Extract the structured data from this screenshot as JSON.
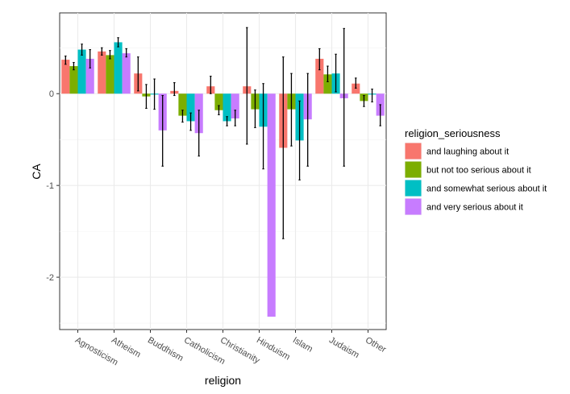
{
  "chart_data": {
    "type": "bar",
    "xlabel": "religion",
    "ylabel": "CA",
    "ylim": [
      -2.57,
      0.88
    ],
    "yticks": [
      -2,
      -1,
      0
    ],
    "y_tick_labels": [
      "-2",
      "-1",
      "0"
    ],
    "grid": true,
    "legend_position": "right",
    "legend_title": "religion_seriousness",
    "categories": [
      "Agnosticism",
      "Atheism",
      "Buddhism",
      "Catholicism",
      "Christianity",
      "Hinduism",
      "Islam",
      "Judaism",
      "Other"
    ],
    "series": [
      {
        "name": "and laughing about it",
        "color": "#F8766D",
        "values": [
          0.37,
          0.46,
          0.22,
          0.03,
          0.08,
          0.08,
          -0.59,
          0.38,
          0.11
        ],
        "error_low": [
          0.32,
          0.42,
          0.03,
          -0.02,
          0.0,
          -0.55,
          -1.58,
          0.26,
          0.06
        ],
        "error_high": [
          0.41,
          0.5,
          0.4,
          0.12,
          0.19,
          0.72,
          0.4,
          0.49,
          0.17
        ]
      },
      {
        "name": "but not too serious about it",
        "color": "#7CAE00",
        "values": [
          0.3,
          0.42,
          -0.03,
          -0.24,
          -0.18,
          -0.17,
          -0.17,
          0.21,
          -0.08
        ],
        "error_low": [
          0.26,
          0.38,
          -0.16,
          -0.31,
          -0.23,
          -0.37,
          -0.57,
          0.13,
          -0.14
        ],
        "error_high": [
          0.34,
          0.47,
          0.1,
          -0.18,
          -0.13,
          0.04,
          0.22,
          0.3,
          -0.02
        ]
      },
      {
        "name": "and somewhat serious about it",
        "color": "#00BFC4",
        "values": [
          0.48,
          0.56,
          -0.01,
          -0.3,
          -0.3,
          -0.36,
          -0.51,
          0.22,
          -0.01
        ],
        "error_low": [
          0.42,
          0.51,
          -0.17,
          -0.4,
          -0.35,
          -0.82,
          -0.94,
          0.02,
          -0.09
        ],
        "error_high": [
          0.54,
          0.61,
          0.16,
          -0.21,
          -0.25,
          0.11,
          -0.08,
          0.43,
          0.05
        ]
      },
      {
        "name": "and very serious about it",
        "color": "#C77CFF",
        "values": [
          0.38,
          0.44,
          -0.4,
          -0.43,
          -0.27,
          -2.43,
          -0.28,
          -0.05,
          -0.24
        ],
        "error_low": [
          0.28,
          0.4,
          -0.79,
          -0.68,
          -0.35,
          -2.43,
          -0.79,
          -0.79,
          -0.35
        ],
        "error_high": [
          0.48,
          0.49,
          -0.02,
          -0.18,
          -0.18,
          -2.43,
          0.22,
          0.71,
          -0.12
        ]
      }
    ]
  }
}
